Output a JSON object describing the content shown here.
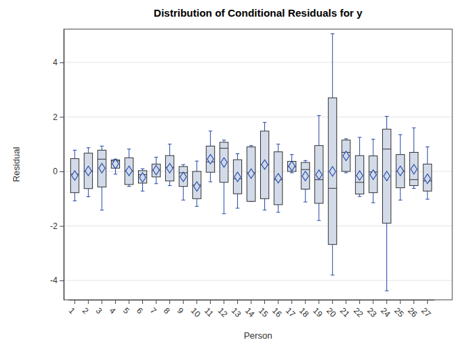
{
  "chart_data": {
    "type": "box",
    "title": "Distribution of Conditional Residuals for y",
    "x_label": "Person",
    "y_label": "Residual",
    "categories": [
      "1",
      "2",
      "3",
      "4",
      "5",
      "6",
      "7",
      "8",
      "9",
      "10",
      "11",
      "12",
      "13",
      "14",
      "15",
      "16",
      "17",
      "18",
      "19",
      "20",
      "21",
      "22",
      "23",
      "24",
      "25",
      "26",
      "27"
    ],
    "whisker_low": [
      -1.08,
      -0.93,
      -1.42,
      -0.1,
      -0.55,
      -0.72,
      -0.45,
      -0.52,
      -1.05,
      -1.28,
      -0.38,
      -1.55,
      -1.35,
      -1.1,
      -1.42,
      -1.5,
      -0.05,
      -1.12,
      -1.8,
      -3.8,
      -0.05,
      -0.92,
      -1.15,
      -4.38,
      -1.05,
      -0.62,
      -1.02
    ],
    "q1": [
      -0.78,
      -0.63,
      -0.57,
      0.12,
      -0.48,
      -0.43,
      -0.2,
      -0.35,
      -0.55,
      -1.0,
      -0.03,
      -0.4,
      -0.82,
      -1.1,
      -1.0,
      -1.22,
      0.0,
      -0.65,
      -1.17,
      -2.68,
      0.0,
      -0.83,
      -0.78,
      -1.9,
      -0.6,
      -0.52,
      -0.72
    ],
    "median": [
      -0.1,
      0.0,
      0.45,
      0.38,
      0.02,
      -0.12,
      0.05,
      0.15,
      -0.05,
      -0.5,
      0.35,
      0.85,
      -0.27,
      -0.05,
      0.25,
      -0.3,
      0.17,
      0.07,
      -0.3,
      -0.62,
      0.7,
      -0.4,
      -0.02,
      0.82,
      0.0,
      -0.3,
      -0.35
    ],
    "q3": [
      0.47,
      0.67,
      0.78,
      0.42,
      0.5,
      0.03,
      0.27,
      0.58,
      0.18,
      0.0,
      0.93,
      1.07,
      0.43,
      0.9,
      1.48,
      0.72,
      0.37,
      0.33,
      0.95,
      2.7,
      1.15,
      0.58,
      0.57,
      1.55,
      0.62,
      0.7,
      0.27
    ],
    "whisker_high": [
      0.78,
      0.87,
      0.93,
      0.45,
      0.82,
      0.1,
      0.52,
      1.0,
      0.25,
      0.38,
      1.48,
      1.15,
      0.65,
      0.95,
      1.8,
      1.0,
      0.62,
      0.4,
      2.05,
      5.05,
      1.2,
      1.25,
      1.18,
      2.02,
      1.35,
      1.6,
      0.9
    ],
    "mean": [
      -0.15,
      0.02,
      0.12,
      0.28,
      0.02,
      -0.22,
      0.05,
      0.12,
      -0.2,
      -0.55,
      0.45,
      0.33,
      -0.2,
      -0.08,
      0.25,
      -0.25,
      0.2,
      -0.17,
      -0.12,
      0.0,
      0.57,
      -0.15,
      -0.12,
      -0.17,
      0.02,
      0.08,
      -0.27
    ],
    "ylim": [
      -4.71,
      5.22
    ],
    "yticks": [
      -4,
      -2,
      0,
      2,
      4
    ],
    "grid": true,
    "color": "#d3dbe8"
  }
}
